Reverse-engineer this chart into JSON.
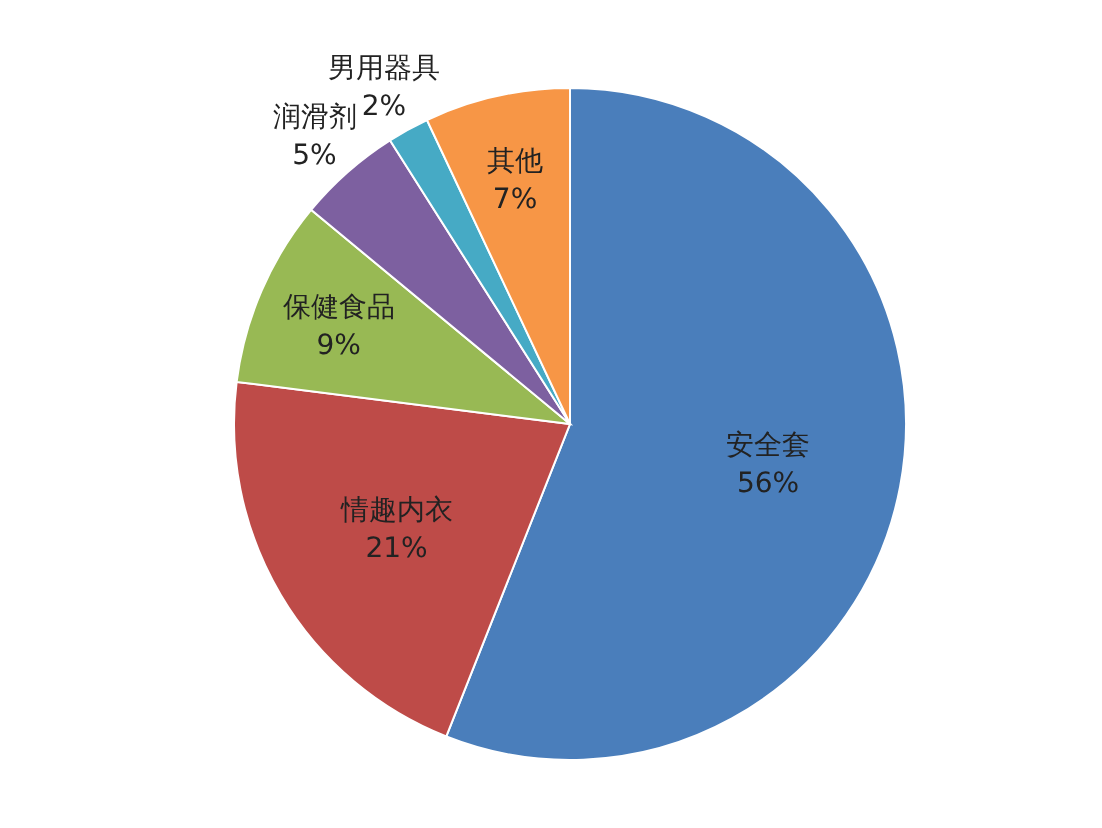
{
  "chart_data": {
    "type": "pie",
    "categories": [
      "安全套",
      "情趣内衣",
      "保健食品",
      "润滑剂",
      "男用器具",
      "其他"
    ],
    "values": [
      56,
      21,
      9,
      5,
      2,
      7
    ],
    "value_labels": [
      "56%",
      "21%",
      "9%",
      "5%",
      "2%",
      "7%"
    ],
    "colors": [
      "#4a7ebb",
      "#be4b48",
      "#98b954",
      "#7d60a0",
      "#46aac5",
      "#f79646"
    ],
    "legend": false
  }
}
